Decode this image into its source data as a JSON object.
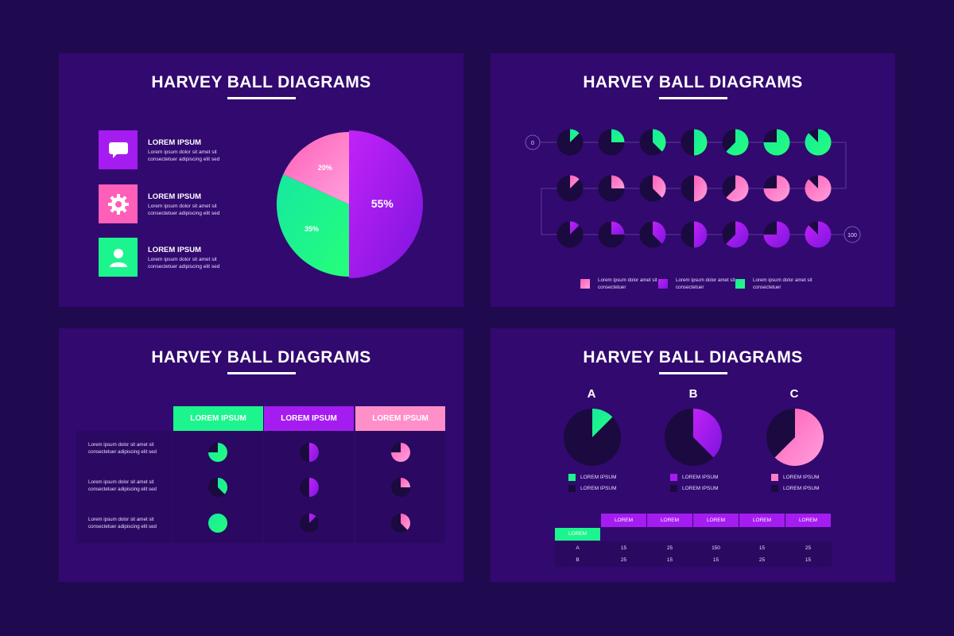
{
  "colors": {
    "bg": "#1f0a4f",
    "panel": "#32096f",
    "green": "#1cf58e",
    "purple": "#a51cf0",
    "pink": "#ff7cc8",
    "dark": "#1a0a3f"
  },
  "panel1": {
    "title": "HARVEY BALL DIAGRAMS",
    "items": [
      {
        "icon": "chat-icon",
        "title": "LOREM IPSUM",
        "text": "Lorem ipsum dolor sit amet sit consectetuer adipiscing elit sed"
      },
      {
        "icon": "gear-icon",
        "title": "LOREM IPSUM",
        "text": "Lorem ipsum dolor sit amet sit consectetuer adipiscing elit sed"
      },
      {
        "icon": "user-icon",
        "title": "LOREM IPSUM",
        "text": "Lorem ipsum dolor sit amet sit consectetuer adipiscing elit sed"
      }
    ],
    "pie": [
      {
        "label": "55%",
        "value": 55,
        "color": "purple"
      },
      {
        "label": "35%",
        "value": 35,
        "color": "green"
      },
      {
        "label": "20%",
        "value": 20,
        "color": "pink"
      }
    ]
  },
  "panel2": {
    "title": "HARVEY BALL DIAGRAMS",
    "start_label": "0",
    "end_label": "100",
    "rows": [
      {
        "color": "green",
        "fills": [
          0.125,
          0.25,
          0.375,
          0.5,
          0.625,
          0.75,
          0.875
        ]
      },
      {
        "color": "pink",
        "fills": [
          0.125,
          0.25,
          0.375,
          0.5,
          0.625,
          0.75,
          0.875
        ]
      },
      {
        "color": "purple",
        "fills": [
          0.125,
          0.25,
          0.375,
          0.5,
          0.625,
          0.75,
          0.875
        ]
      }
    ],
    "legend": [
      {
        "color": "pink",
        "text": "Lorem ipsum dolor amet sit consectetuer"
      },
      {
        "color": "purple",
        "text": "Lorem ipsum dolor amet sit consectetuer"
      },
      {
        "color": "green",
        "text": "Lorem ipsum dolor amet sit consectetuer"
      }
    ]
  },
  "panel3": {
    "title": "HARVEY BALL DIAGRAMS",
    "columns": [
      {
        "label": "LOREM IPSUM",
        "color": "green"
      },
      {
        "label": "LOREM IPSUM",
        "color": "purple"
      },
      {
        "label": "LOREM IPSUM",
        "color": "pink"
      }
    ],
    "rows": [
      {
        "label": "Lorem ipsum dolor sit amet sit consectetuer adipiscing elit sed",
        "fills": [
          0.75,
          0.5,
          0.75
        ]
      },
      {
        "label": "Lorem ipsum dolor sit amet sit consectetuer adipiscing elit sed",
        "fills": [
          0.375,
          0.5,
          0.25
        ]
      },
      {
        "label": "Lorem ipsum dolor sit amet sit consectetuer adipiscing elit sed",
        "fills": [
          1.0,
          0.125,
          0.375
        ]
      }
    ]
  },
  "panel4": {
    "title": "HARVEY BALL DIAGRAMS",
    "charts": [
      {
        "letter": "A",
        "color": "green",
        "fill": 0.125,
        "legend": [
          "LOREM IPSUM",
          "LOREM IPSUM"
        ]
      },
      {
        "letter": "B",
        "color": "purple",
        "fill": 0.375,
        "legend": [
          "LOREM IPSUM",
          "LOREM IPSUM"
        ]
      },
      {
        "letter": "C",
        "color": "pink",
        "fill": 0.625,
        "legend": [
          "LOREM IPSUM",
          "LOREM IPSUM"
        ]
      }
    ],
    "table": {
      "headers": [
        "LOREM",
        "LOREM",
        "LOREM",
        "LOREM",
        "LOREM"
      ],
      "corner_label": "LOREM",
      "rows": [
        {
          "label": "A",
          "values": [
            "15",
            "25",
            "150",
            "15",
            "25"
          ]
        },
        {
          "label": "B",
          "values": [
            "25",
            "15",
            "15",
            "25",
            "15"
          ]
        }
      ]
    }
  }
}
